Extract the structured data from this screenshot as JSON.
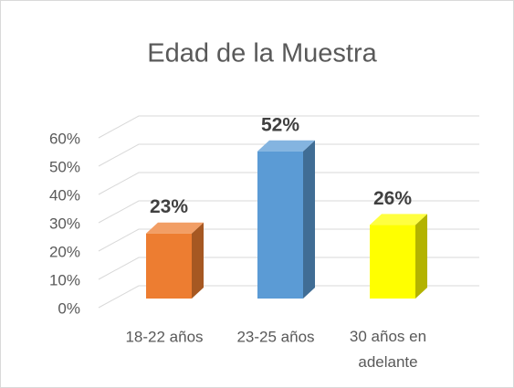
{
  "chart_data": {
    "type": "bar3d",
    "title": "Edad de la Muestra",
    "categories": [
      "18-22 años",
      "23-25 años",
      "30 años en adelante"
    ],
    "values": [
      23,
      52,
      26
    ],
    "value_labels": [
      "23%",
      "52%",
      "26%"
    ],
    "colors": [
      "#ed7d31",
      "#5b9bd5",
      "#ffff00"
    ],
    "ylim": [
      0,
      60
    ],
    "yticks": [
      {
        "value": 0,
        "label": "0%"
      },
      {
        "value": 10,
        "label": "10%"
      },
      {
        "value": 20,
        "label": "20%"
      },
      {
        "value": 30,
        "label": "30%"
      },
      {
        "value": 40,
        "label": "40%"
      },
      {
        "value": 50,
        "label": "50%"
      },
      {
        "value": 60,
        "label": "60%"
      }
    ],
    "grid": true
  }
}
